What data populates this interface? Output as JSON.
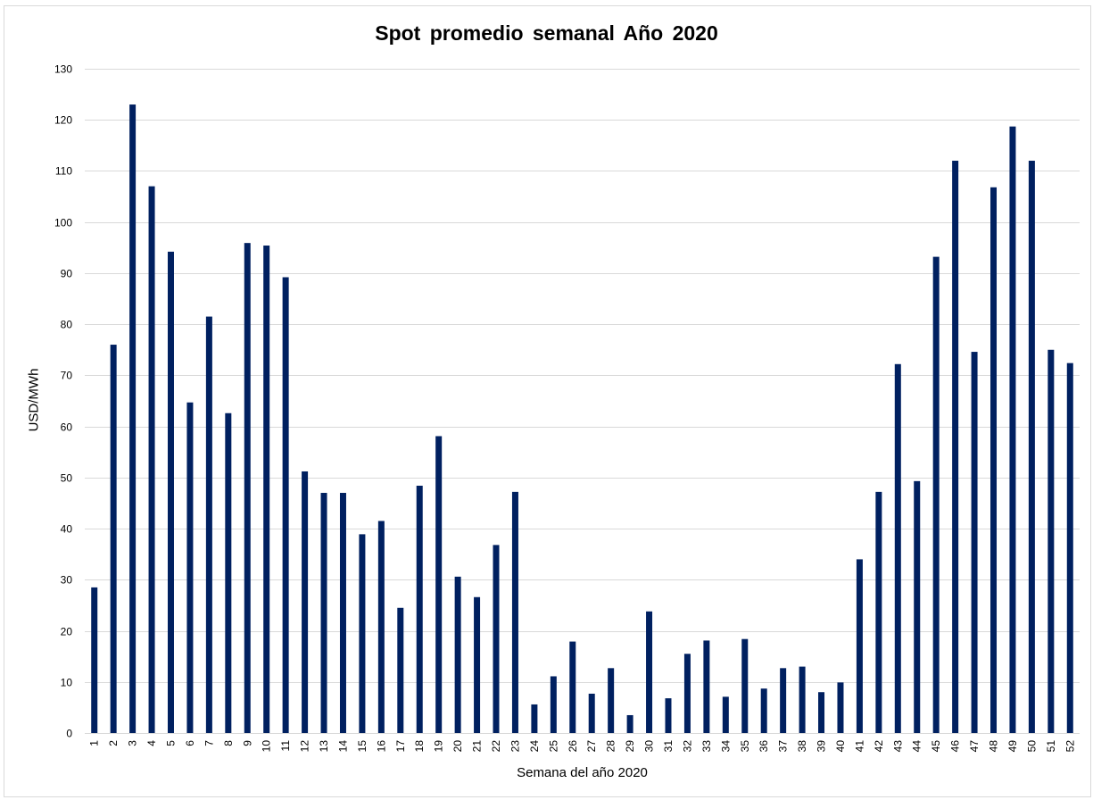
{
  "chart_data": {
    "type": "bar",
    "title": "Spot promedio semanal Año 2020",
    "xlabel": "Semana del año 2020",
    "ylabel": "USD/MWh",
    "ylim": [
      0,
      130
    ],
    "yticks": [
      0,
      10,
      20,
      30,
      40,
      50,
      60,
      70,
      80,
      90,
      100,
      110,
      120,
      130
    ],
    "grid": true,
    "bar_color": "#002060",
    "grid_color": "#d9d9d9",
    "categories": [
      "1",
      "2",
      "3",
      "4",
      "5",
      "6",
      "7",
      "8",
      "9",
      "10",
      "11",
      "12",
      "13",
      "14",
      "15",
      "16",
      "17",
      "18",
      "19",
      "20",
      "21",
      "22",
      "23",
      "24",
      "25",
      "26",
      "27",
      "28",
      "29",
      "30",
      "31",
      "32",
      "33",
      "34",
      "35",
      "36",
      "37",
      "38",
      "39",
      "40",
      "41",
      "42",
      "43",
      "44",
      "45",
      "46",
      "47",
      "48",
      "49",
      "50",
      "51",
      "52"
    ],
    "values": [
      28.5,
      76,
      123,
      107,
      94.2,
      64.7,
      81.5,
      62.6,
      95.9,
      95.4,
      89.2,
      51.2,
      47,
      47,
      38.9,
      41.5,
      24.5,
      48.4,
      58.1,
      30.6,
      26.6,
      36.8,
      47.2,
      5.6,
      11.1,
      17.9,
      7.7,
      12.7,
      3.5,
      23.8,
      6.8,
      15.5,
      18.1,
      7.1,
      18.4,
      8.7,
      12.7,
      13,
      8,
      9.9,
      34,
      47.2,
      72.2,
      49.3,
      93.2,
      112,
      74.6,
      106.8,
      118.7,
      112,
      75,
      72.4
    ]
  }
}
